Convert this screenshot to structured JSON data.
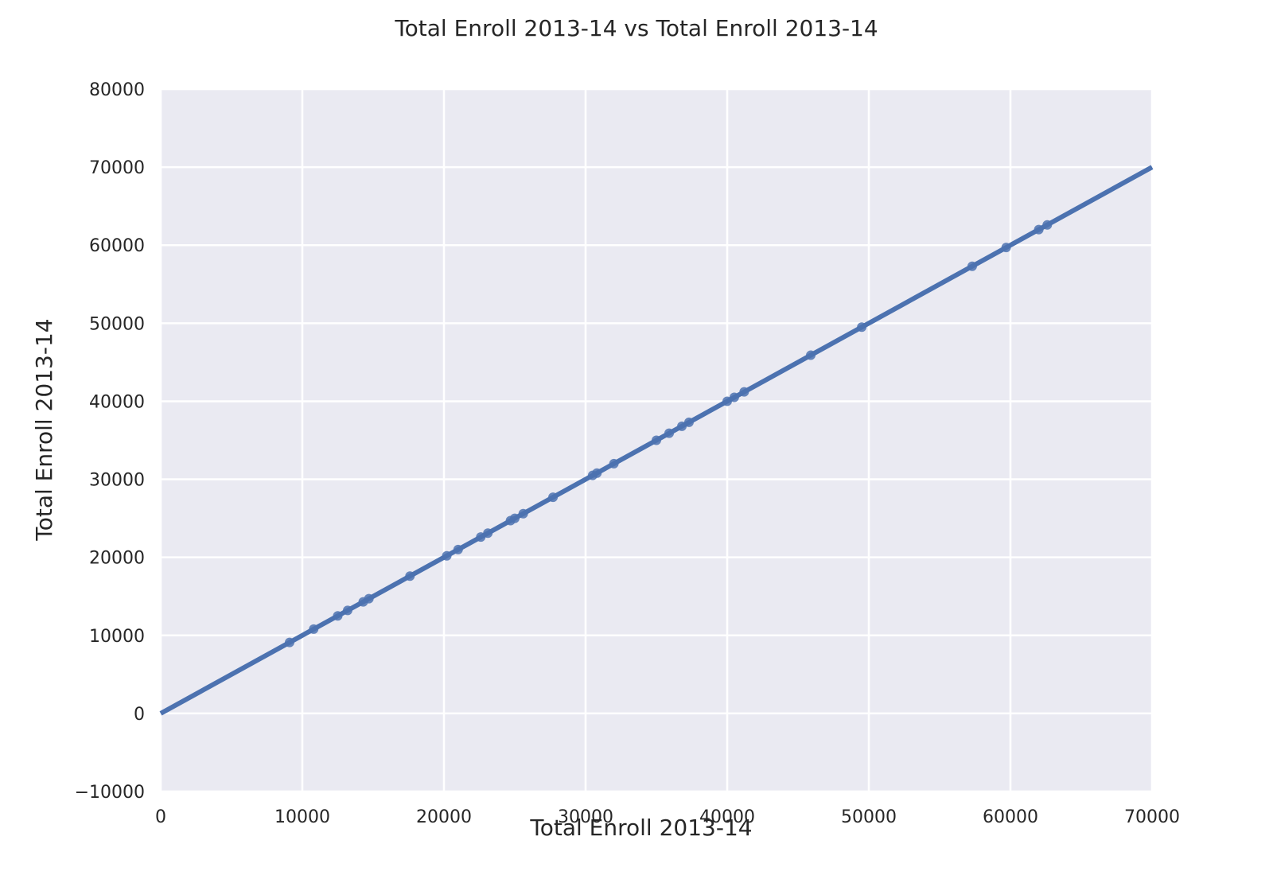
{
  "chart_data": {
    "type": "scatter",
    "title": "Total Enroll 2013-14 vs Total Enroll 2013-14",
    "xlabel": "Total Enroll 2013-14",
    "ylabel": "Total Enroll 2013-14",
    "xlim": [
      0,
      70000
    ],
    "ylim": [
      -10000,
      80000
    ],
    "xticks": [
      0,
      10000,
      20000,
      30000,
      40000,
      50000,
      60000,
      70000
    ],
    "yticks": [
      -10000,
      0,
      10000,
      20000,
      30000,
      40000,
      50000,
      60000,
      70000,
      80000
    ],
    "xtick_labels": [
      "0",
      "10000",
      "20000",
      "30000",
      "40000",
      "50000",
      "60000",
      "70000"
    ],
    "ytick_labels": [
      "−10000",
      "0",
      "10000",
      "20000",
      "30000",
      "40000",
      "50000",
      "60000",
      "70000",
      "80000"
    ],
    "grid": true,
    "background_color": "#eaeaf2",
    "grid_color": "#ffffff",
    "series_color": "#4c72b0",
    "points": [
      {
        "x": 9100,
        "y": 9100
      },
      {
        "x": 10800,
        "y": 10800
      },
      {
        "x": 12500,
        "y": 12500
      },
      {
        "x": 13200,
        "y": 13200
      },
      {
        "x": 14300,
        "y": 14300
      },
      {
        "x": 14700,
        "y": 14700
      },
      {
        "x": 17600,
        "y": 17600
      },
      {
        "x": 20200,
        "y": 20200
      },
      {
        "x": 21000,
        "y": 21000
      },
      {
        "x": 22600,
        "y": 22600
      },
      {
        "x": 23100,
        "y": 23100
      },
      {
        "x": 24700,
        "y": 24700
      },
      {
        "x": 25000,
        "y": 25000
      },
      {
        "x": 25600,
        "y": 25600
      },
      {
        "x": 27700,
        "y": 27700
      },
      {
        "x": 30500,
        "y": 30500
      },
      {
        "x": 30800,
        "y": 30800
      },
      {
        "x": 32000,
        "y": 32000
      },
      {
        "x": 35000,
        "y": 35000
      },
      {
        "x": 35900,
        "y": 35900
      },
      {
        "x": 36800,
        "y": 36800
      },
      {
        "x": 37300,
        "y": 37300
      },
      {
        "x": 40000,
        "y": 40000
      },
      {
        "x": 40500,
        "y": 40500
      },
      {
        "x": 41200,
        "y": 41200
      },
      {
        "x": 45900,
        "y": 45900
      },
      {
        "x": 49500,
        "y": 49500
      },
      {
        "x": 57300,
        "y": 57300
      },
      {
        "x": 59700,
        "y": 59700
      },
      {
        "x": 62000,
        "y": 62000
      },
      {
        "x": 62600,
        "y": 62600
      }
    ],
    "regression_line": {
      "x": [
        0,
        70000
      ],
      "y": [
        0,
        70000
      ]
    }
  }
}
